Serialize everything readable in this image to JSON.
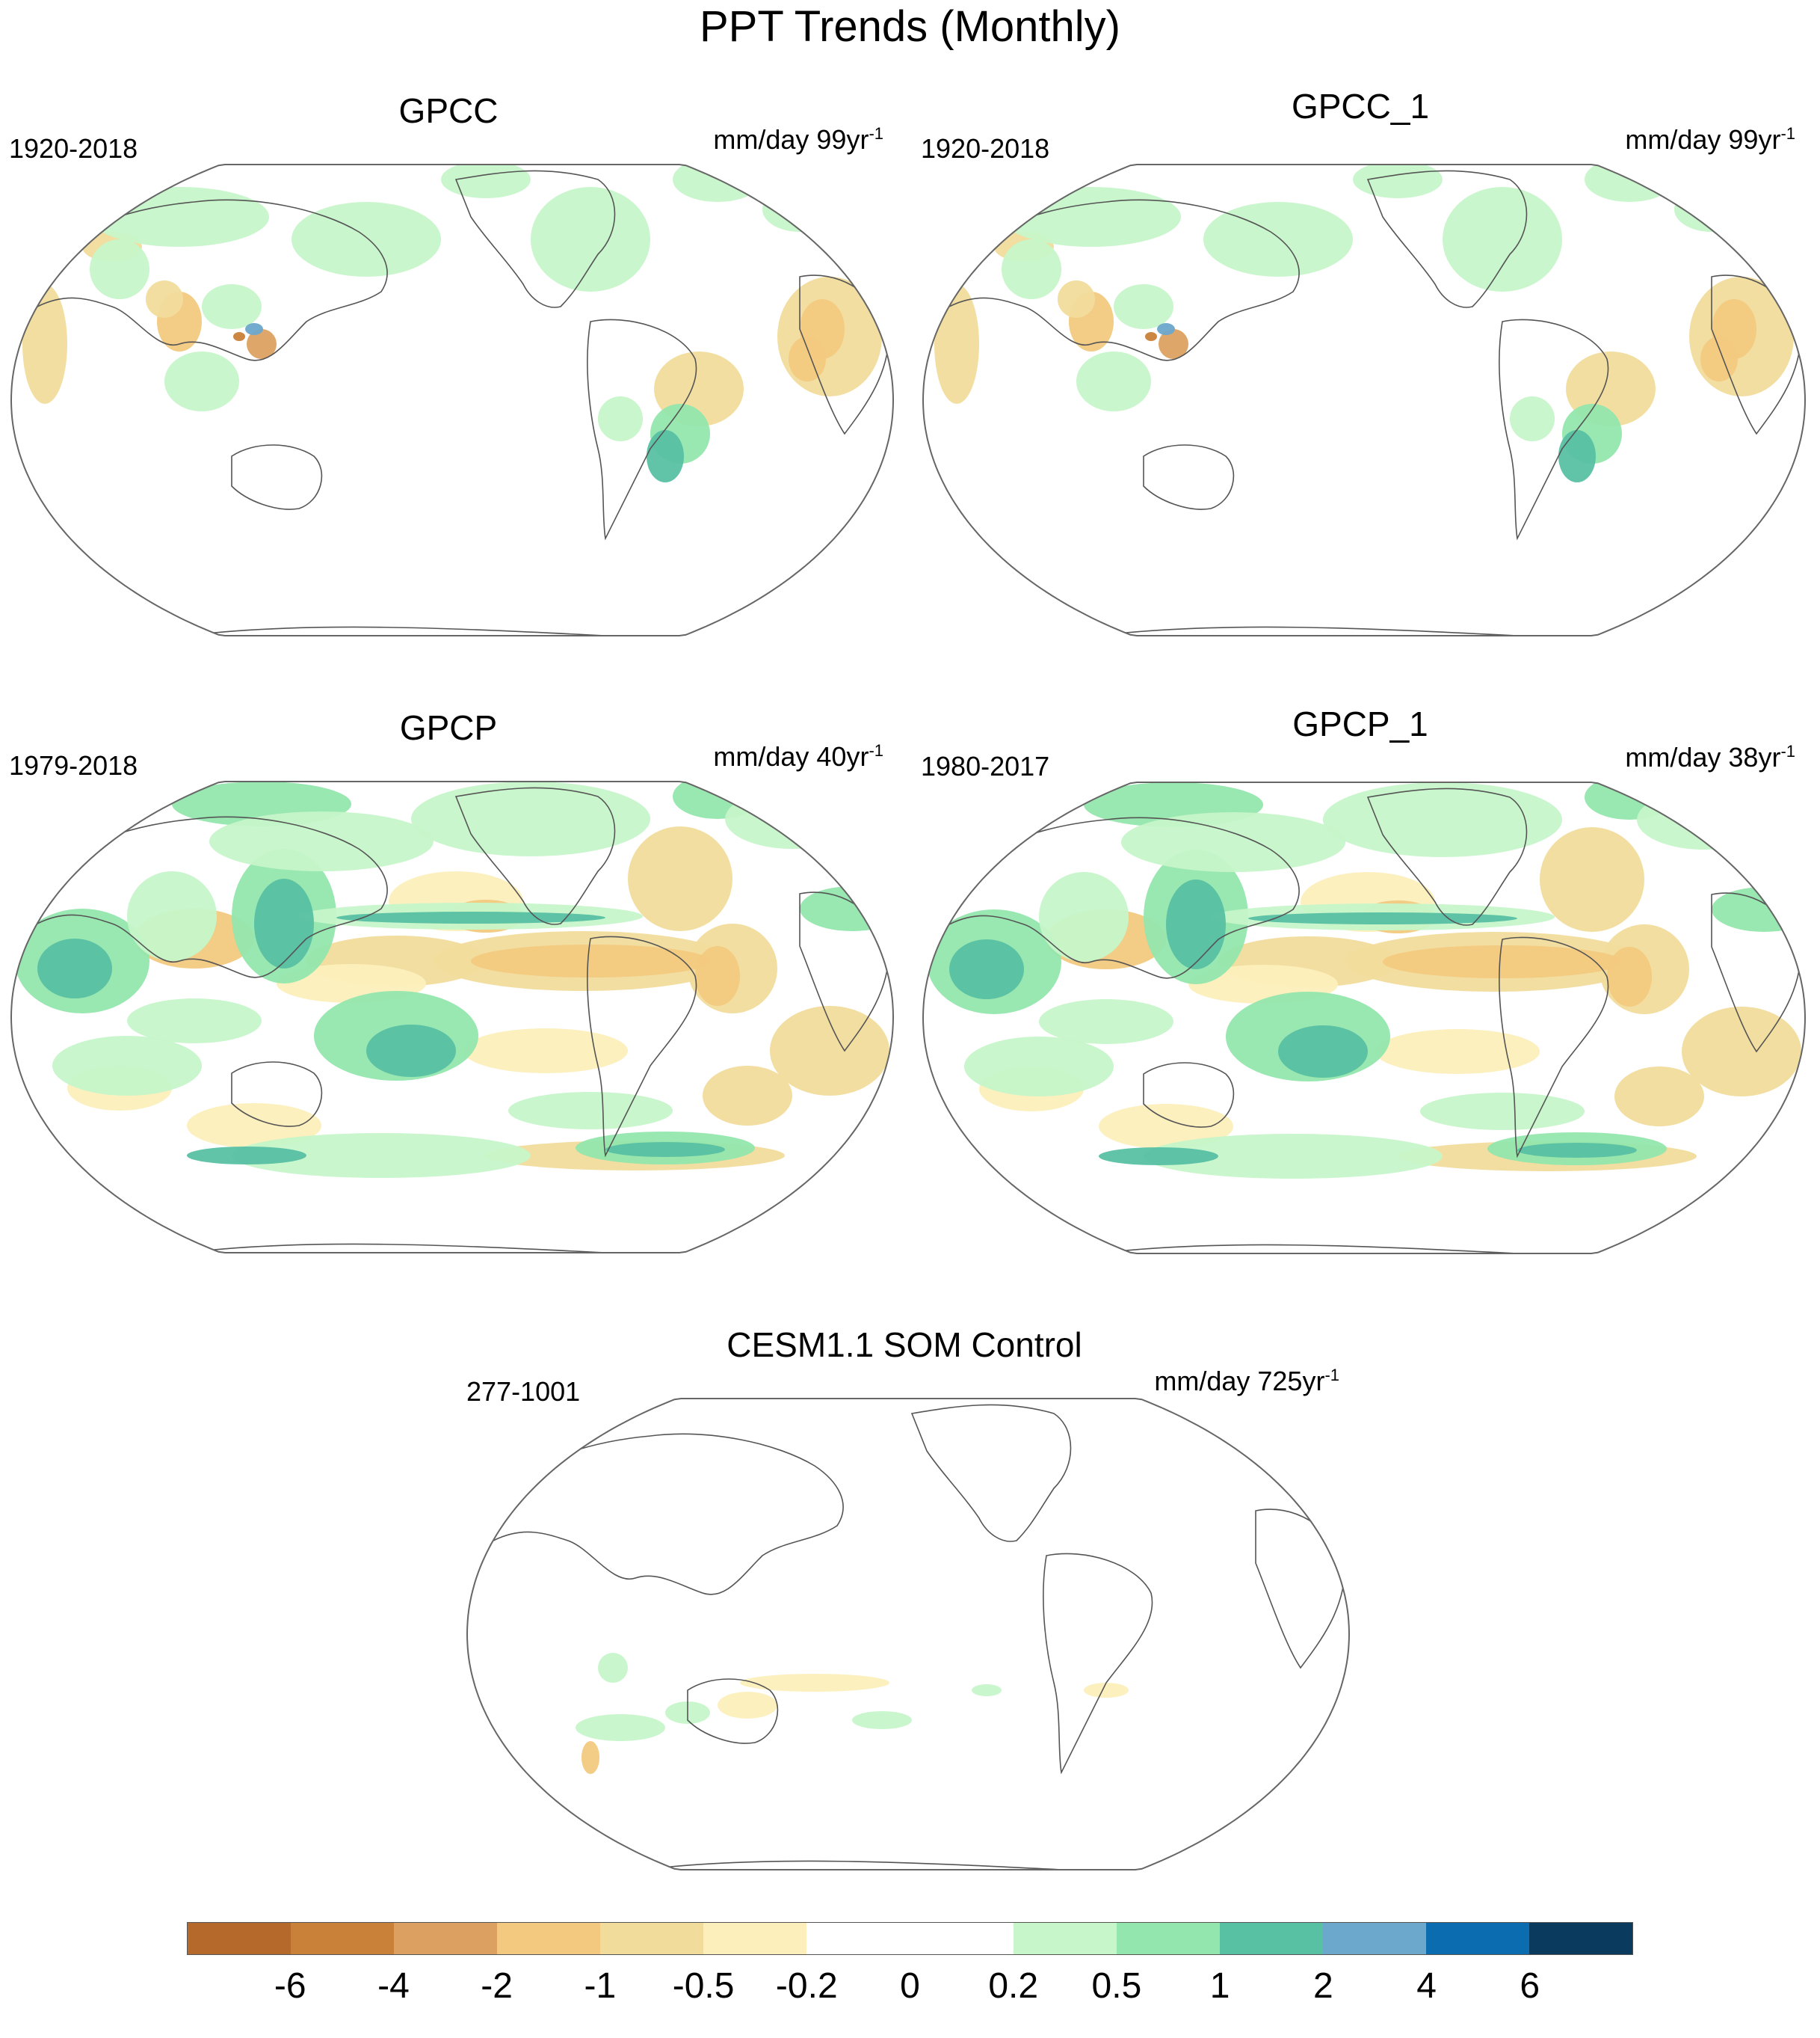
{
  "title": "PPT Trends (Monthly)",
  "panels": [
    {
      "id": "gpcc",
      "title": "GPCC",
      "period": "1920-2018",
      "units": "mm/day 99yr",
      "unit_sup": "-1",
      "pattern": "sparse-land"
    },
    {
      "id": "gpcc1",
      "title": "GPCC_1",
      "period": "1920-2018",
      "units": "mm/day 99yr",
      "unit_sup": "-1",
      "pattern": "sparse-land"
    },
    {
      "id": "gpcp",
      "title": "GPCP",
      "period": "1979-2018",
      "units": "mm/day 40yr",
      "unit_sup": "-1",
      "pattern": "global"
    },
    {
      "id": "gpcp1",
      "title": "GPCP_1",
      "period": "1980-2017",
      "units": "mm/day 38yr",
      "unit_sup": "-1",
      "pattern": "global"
    },
    {
      "id": "cesm",
      "title": "CESM1.1 SOM Control",
      "period": "277-1001",
      "units": "mm/day 725yr",
      "unit_sup": "-1",
      "pattern": "weak"
    }
  ],
  "colorbar": {
    "colors": [
      "#b5692b",
      "#c98139",
      "#dca160",
      "#f2c97f",
      "#f2dc9c",
      "#fcefbc",
      "#ffffff",
      "#ffffff",
      "#c6f6c9",
      "#93e6ad",
      "#58c0a3",
      "#6ca7cc",
      "#0b6cb0",
      "#0b3a5f"
    ],
    "labels": [
      "-6",
      "-4",
      "-2",
      "-1",
      "-0.5",
      "-0.2",
      "0",
      "0.2",
      "0.5",
      "1",
      "2",
      "4",
      "6"
    ]
  }
}
